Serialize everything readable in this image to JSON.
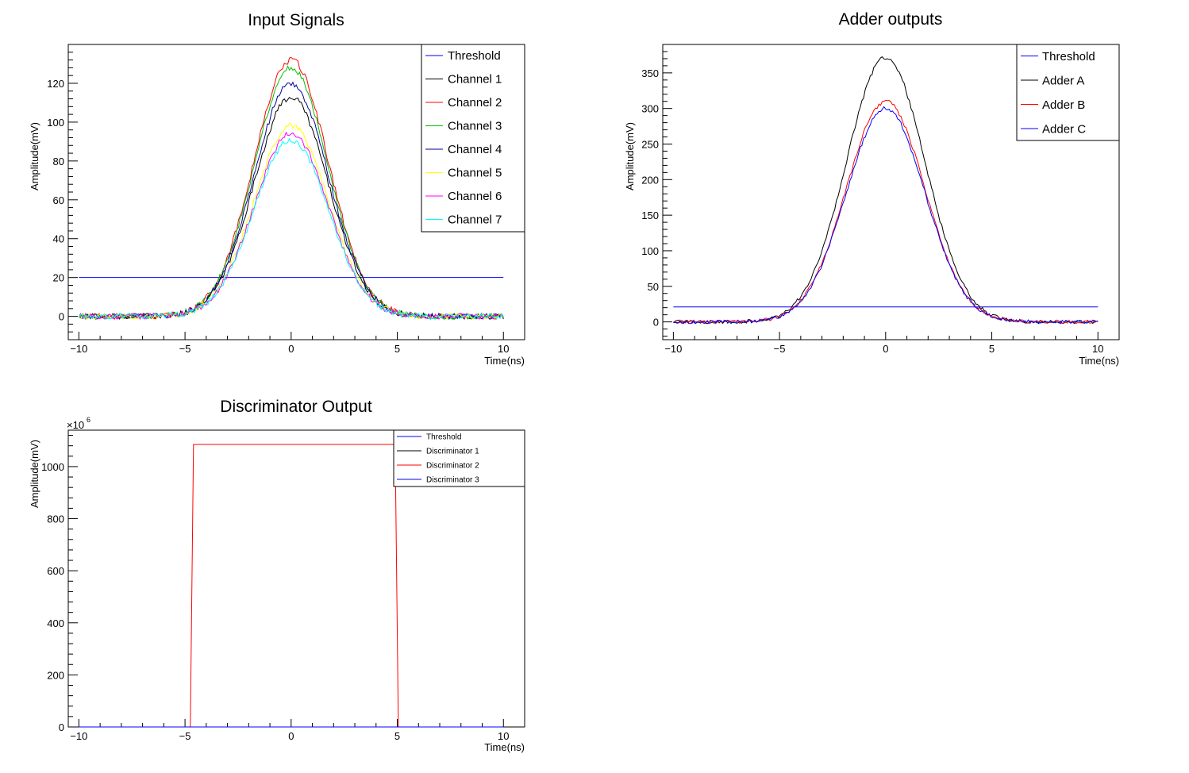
{
  "chart_data": [
    {
      "type": "line",
      "title": "Input Signals",
      "xlabel": "Time(ns)",
      "ylabel": "Amplitude(mV)",
      "xlim": [
        -10.5,
        11
      ],
      "ylim": [
        -12,
        140
      ],
      "xticks": [
        -10,
        -5,
        0,
        5,
        10
      ],
      "yticks": [
        0,
        20,
        40,
        60,
        80,
        100,
        120
      ],
      "xtick_labels": [
        "−10",
        "−5",
        "0",
        "5",
        "10"
      ],
      "ytick_labels": [
        "0",
        "20",
        "40",
        "60",
        "80",
        "100",
        "120"
      ],
      "legend_position": "top-right",
      "noise_amplitude": 1.5,
      "series": [
        {
          "name": "Threshold",
          "color": "#0000ff",
          "kind": "constant",
          "value": 20,
          "xmin": -10,
          "xmax": 10
        },
        {
          "name": "Channel 1",
          "color": "#000000",
          "kind": "gaussian",
          "peak": 113,
          "sigma": 1.75
        },
        {
          "name": "Channel 2",
          "color": "#ff0000",
          "kind": "gaussian",
          "peak": 132,
          "sigma": 1.75
        },
        {
          "name": "Channel 3",
          "color": "#00c000",
          "kind": "gaussian",
          "peak": 128,
          "sigma": 1.75
        },
        {
          "name": "Channel 4",
          "color": "#000099",
          "kind": "gaussian",
          "peak": 120,
          "sigma": 1.75
        },
        {
          "name": "Channel 5",
          "color": "#ffff00",
          "kind": "gaussian",
          "peak": 98,
          "sigma": 1.75
        },
        {
          "name": "Channel 6",
          "color": "#ff00ff",
          "kind": "gaussian",
          "peak": 94,
          "sigma": 1.75
        },
        {
          "name": "Channel 7",
          "color": "#00ffff",
          "kind": "gaussian",
          "peak": 91,
          "sigma": 1.75
        }
      ]
    },
    {
      "type": "line",
      "title": "Adder outputs",
      "xlabel": "Time(ns)",
      "ylabel": "Amplitude(mV)",
      "xlim": [
        -10.5,
        11
      ],
      "ylim": [
        -25,
        390
      ],
      "xticks": [
        -10,
        -5,
        0,
        5,
        10
      ],
      "yticks": [
        0,
        50,
        100,
        150,
        200,
        250,
        300,
        350
      ],
      "xtick_labels": [
        "−10",
        "−5",
        "0",
        "5",
        "10"
      ],
      "ytick_labels": [
        "0",
        "50",
        "100",
        "150",
        "200",
        "250",
        "300",
        "350"
      ],
      "legend_position": "top-right",
      "noise_amplitude": 2.5,
      "series": [
        {
          "name": "Threshold",
          "color": "#0000ff",
          "kind": "constant",
          "value": 21,
          "xmin": -10,
          "xmax": 10
        },
        {
          "name": "Adder A",
          "color": "#000000",
          "kind": "gaussian",
          "peak": 372,
          "sigma": 1.85
        },
        {
          "name": "Adder B",
          "color": "#ff0000",
          "kind": "gaussian",
          "peak": 310,
          "sigma": 1.85
        },
        {
          "name": "Adder C",
          "color": "#0000ff",
          "kind": "gaussian",
          "peak": 300,
          "sigma": 1.85
        }
      ]
    },
    {
      "type": "line",
      "title": "Discriminator Output",
      "xlabel": "Time(ns)",
      "ylabel": "Amplitude(mV)",
      "y_exponent_label": "×10",
      "y_exponent_power": "6",
      "xlim": [
        -10.5,
        11
      ],
      "ylim": [
        0,
        1140
      ],
      "xticks": [
        -10,
        -5,
        0,
        5,
        10
      ],
      "yticks": [
        0,
        200,
        400,
        600,
        800,
        1000
      ],
      "xtick_labels": [
        "−10",
        "−5",
        "0",
        "5",
        "10"
      ],
      "ytick_labels": [
        "0",
        "200",
        "400",
        "600",
        "800",
        "1000"
      ],
      "legend_position": "top-right",
      "series": [
        {
          "name": "Threshold",
          "color": "#0000ff",
          "kind": "constant",
          "value": 0,
          "xmin": -10,
          "xmax": 10
        },
        {
          "name": "Discriminator 1",
          "color": "#000000",
          "kind": "constant",
          "value": 0,
          "xmin": -10,
          "xmax": 10
        },
        {
          "name": "Discriminator 2",
          "color": "#ff0000",
          "kind": "pulse",
          "high": 1085,
          "x_rise": [
            -4.75,
            -4.6
          ],
          "x_fall": [
            4.9,
            5.05
          ],
          "xmin": -10,
          "xmax": 10
        },
        {
          "name": "Discriminator 3",
          "color": "#0000ff",
          "kind": "constant",
          "value": 0,
          "xmin": -10,
          "xmax": 10
        }
      ]
    }
  ]
}
